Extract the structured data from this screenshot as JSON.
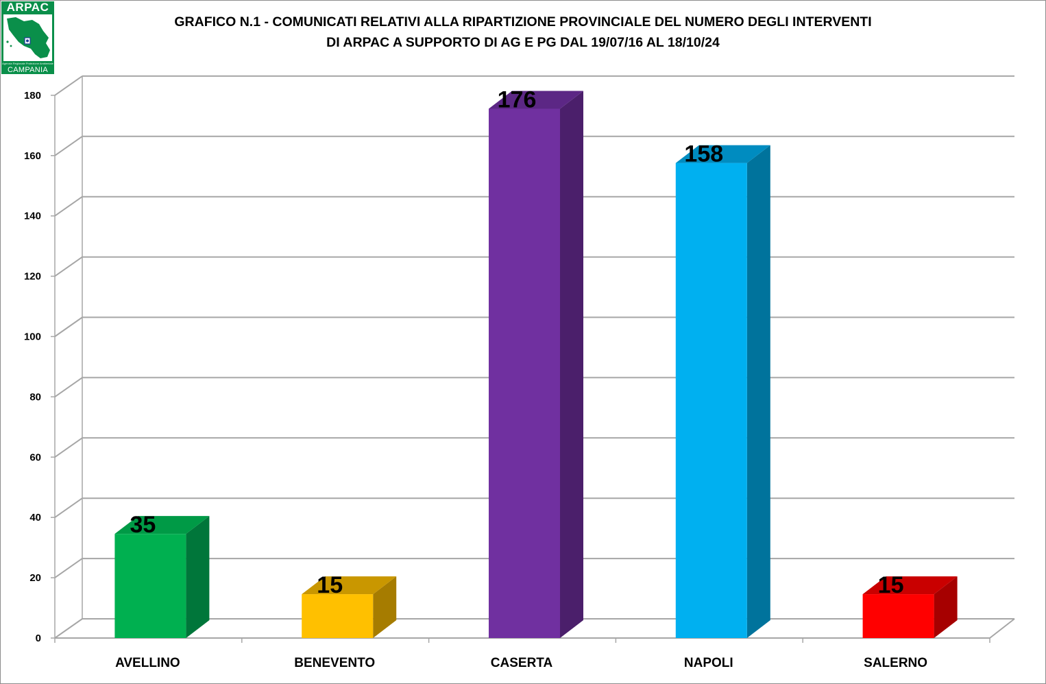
{
  "logo": {
    "top_text": "ARPAC",
    "subtitle_text": "Agenzia Regionale Protezione Ambientale",
    "bottom_text": "CAMPANIA"
  },
  "colors": {
    "grid": "#a6a6a6",
    "logo_green": "#0a8f4a"
  },
  "chart_data": {
    "type": "bar",
    "title_line1": "GRAFICO N.1 - COMUNICATI RELATIVI ALLA RIPARTIZIONE PROVINCIALE DEL NUMERO DEGLI INTERVENTI",
    "title_line2": "DI ARPAC A SUPPORTO DI AG E PG DAL 19/07/16 AL 18/10/24",
    "categories": [
      "AVELLINO",
      "BENEVENTO",
      "CASERTA",
      "NAPOLI",
      "SALERNO"
    ],
    "values": [
      35,
      15,
      176,
      158,
      15
    ],
    "bar_colors": [
      {
        "front": "#00b050",
        "side": "#00763a",
        "top": "#009a46"
      },
      {
        "front": "#ffc000",
        "side": "#a67c00",
        "top": "#c99700"
      },
      {
        "front": "#7030a0",
        "side": "#4b1f6b",
        "top": "#5c2785"
      },
      {
        "front": "#00b0f0",
        "side": "#00739c",
        "top": "#008cc0"
      },
      {
        "front": "#ff0000",
        "side": "#a60000",
        "top": "#c90000"
      }
    ],
    "ylim": [
      0,
      180
    ],
    "yticks": [
      0,
      20,
      40,
      60,
      80,
      100,
      120,
      140,
      160,
      180
    ],
    "grid": true,
    "three_d": true
  }
}
